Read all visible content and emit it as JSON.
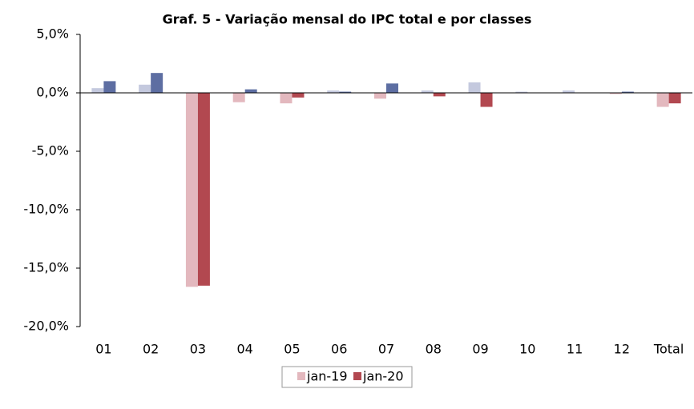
{
  "chart_data": {
    "type": "bar",
    "title": "Graf. 5 - Variação mensal do IPC total e por classes",
    "categories": [
      "01",
      "02",
      "03",
      "04",
      "05",
      "06",
      "07",
      "08",
      "09",
      "10",
      "11",
      "12",
      "Total"
    ],
    "series": [
      {
        "name": "jan-19",
        "color": "#e3b8be",
        "color_positive": "#c4c9de",
        "values": [
          0.4,
          0.7,
          -16.6,
          -0.8,
          -0.9,
          0.2,
          -0.5,
          0.2,
          0.9,
          0.1,
          0.2,
          -0.1,
          -1.2
        ]
      },
      {
        "name": "jan-20",
        "color": "#b24850",
        "color_positive": "#5d6ea2",
        "values": [
          1.0,
          1.7,
          -16.5,
          0.3,
          -0.4,
          0.1,
          0.8,
          -0.3,
          -1.2,
          0.0,
          0.0,
          0.1,
          -0.9
        ]
      }
    ],
    "ylim": [
      -20,
      5
    ],
    "yticks": [
      {
        "value": -20,
        "label": "-20,0%"
      },
      {
        "value": -15,
        "label": "-15,0%"
      },
      {
        "value": -10,
        "label": "-10,0%"
      },
      {
        "value": -5,
        "label": "-5,0%"
      },
      {
        "value": 0,
        "label": "0,0%"
      },
      {
        "value": 5,
        "label": "5,0%"
      }
    ],
    "grid": false,
    "legend": "bottom"
  }
}
